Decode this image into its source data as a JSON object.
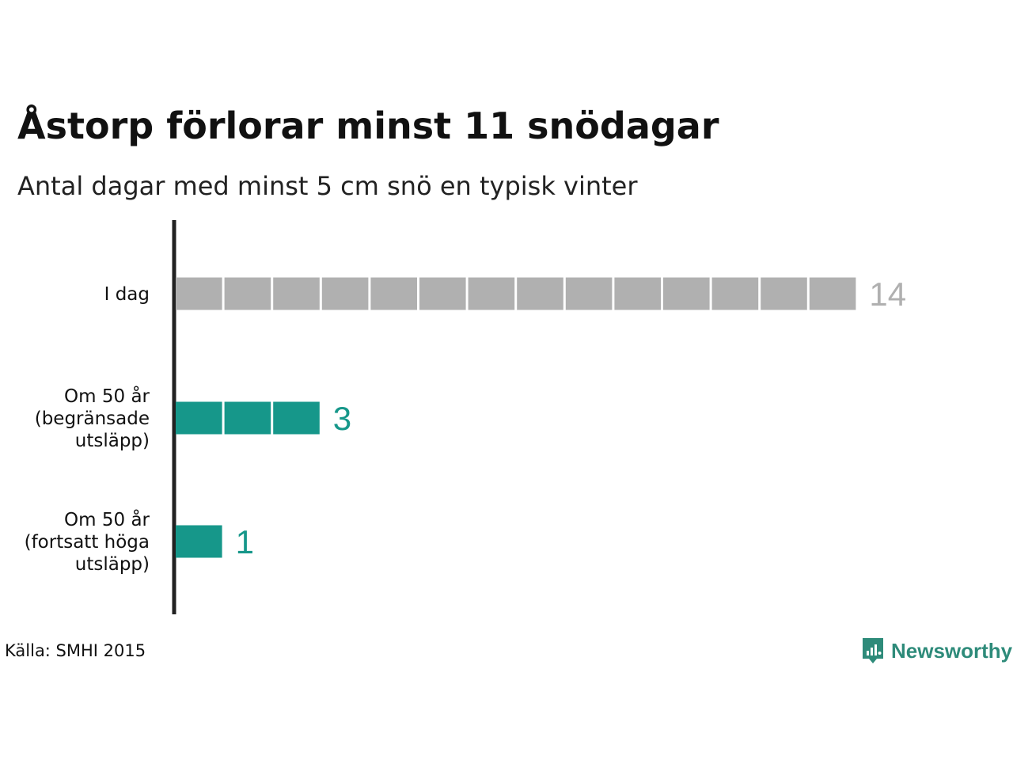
{
  "title": "Åstorp förlorar minst 11 snödagar",
  "subtitle": "Antal dagar med minst 5 cm snö en typisk vinter",
  "source": "Källa: SMHI 2015",
  "brand": {
    "name": "Newsworthy",
    "color": "#2e8b7a"
  },
  "colors": {
    "today": "#b0b0b0",
    "future": "#16978a",
    "axis": "#222222"
  },
  "chart_data": {
    "type": "bar",
    "orientation": "horizontal",
    "style": "unit-blocks",
    "categories": [
      [
        "I dag"
      ],
      [
        "Om 50 år",
        "(begränsade",
        "utsläpp)"
      ],
      [
        "Om 50 år",
        "(fortsatt höga",
        "utsläpp)"
      ]
    ],
    "values": [
      14,
      3,
      1
    ],
    "bar_colors": [
      "#b0b0b0",
      "#16978a",
      "#16978a"
    ],
    "xlim": [
      0,
      14
    ],
    "grid": false,
    "legend": "none"
  }
}
